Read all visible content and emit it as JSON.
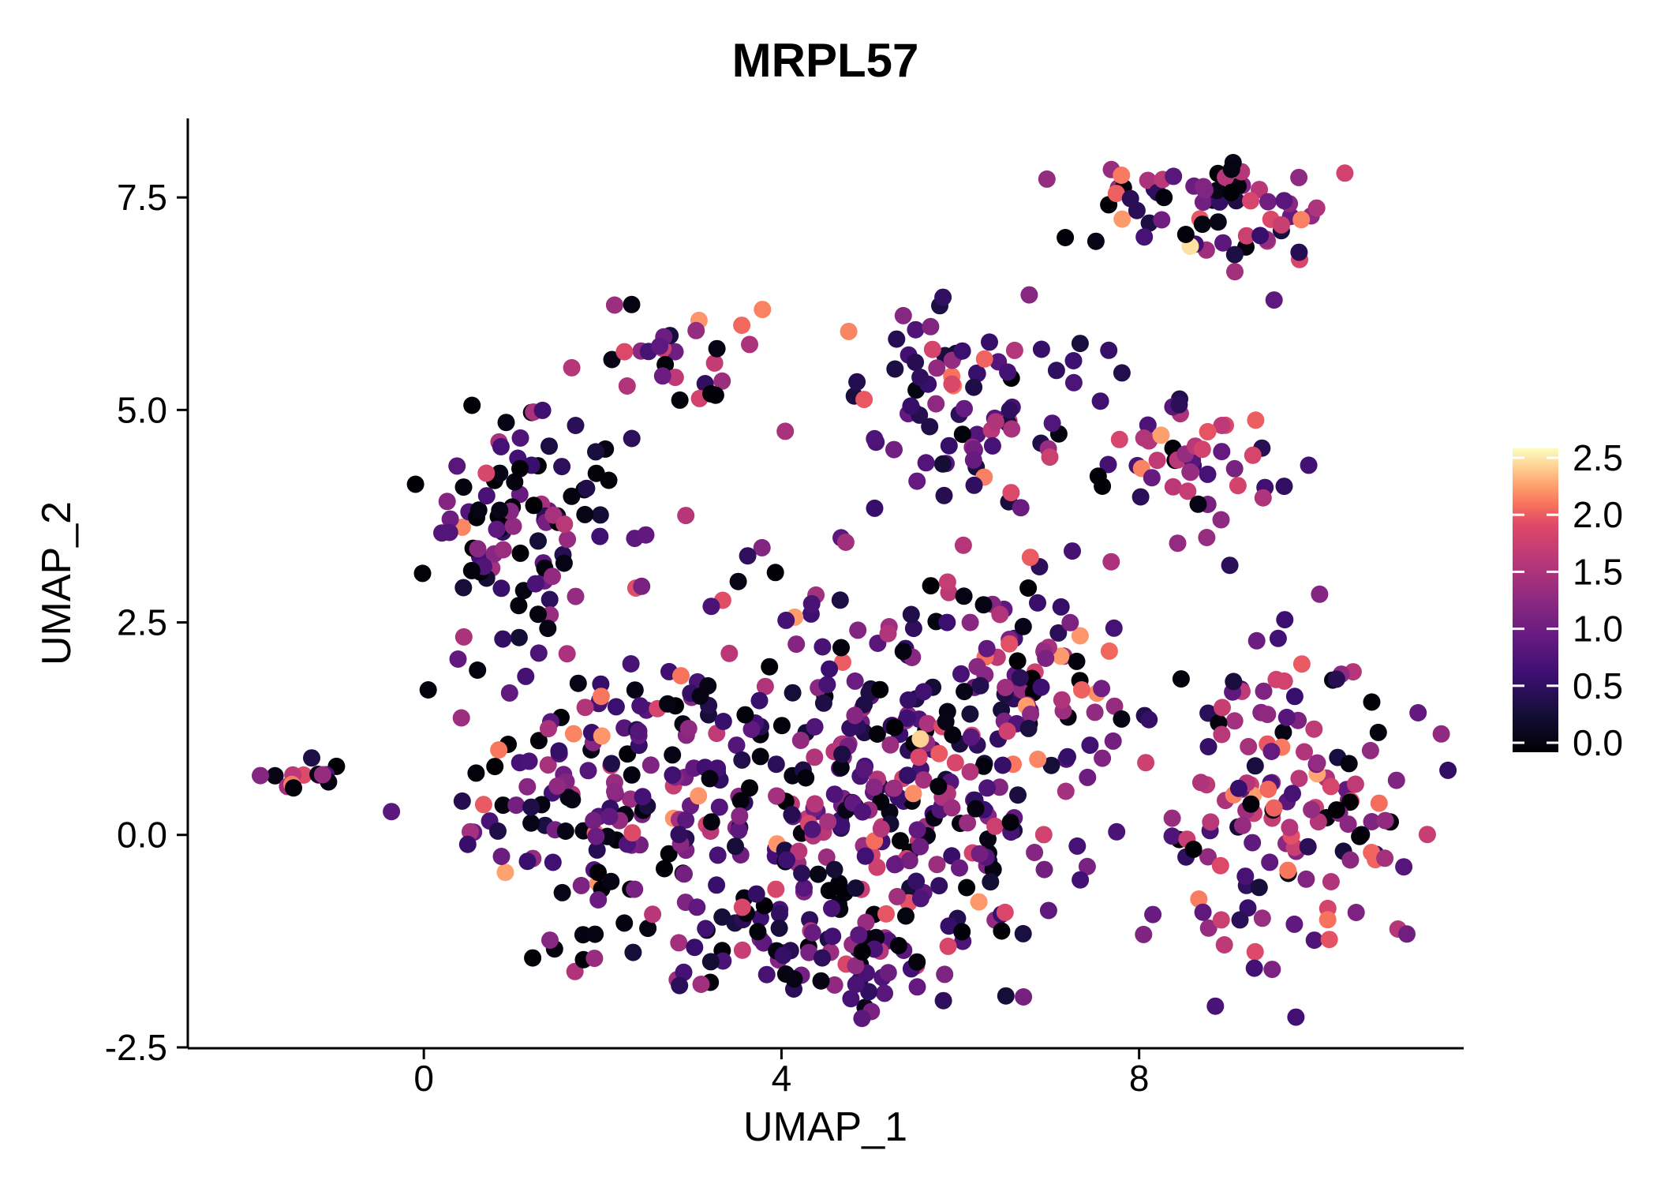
{
  "title": "MRPL57",
  "chart_data": {
    "type": "scatter",
    "title": "MRPL57",
    "xlabel": "UMAP_1",
    "ylabel": "UMAP_2",
    "xlim": [
      -2.64,
      11.63
    ],
    "ylim": [
      -2.51,
      8.43
    ],
    "grid": false,
    "x_ticks": [
      {
        "value": 0,
        "label": "0"
      },
      {
        "value": 4,
        "label": "4"
      },
      {
        "value": 8,
        "label": "8"
      }
    ],
    "y_ticks": [
      {
        "value": 7.5,
        "label": "7.5"
      },
      {
        "value": 5.0,
        "label": "5.0"
      },
      {
        "value": 2.5,
        "label": "2.5"
      },
      {
        "value": 0.0,
        "label": "0.0"
      },
      {
        "value": -2.5,
        "label": "-2.5"
      }
    ],
    "legend": {
      "position": "right",
      "min": 0.0,
      "max": 2.5,
      "ticks": [
        {
          "value": 2.5,
          "label": "2.5"
        },
        {
          "value": 2.0,
          "label": "2.0"
        },
        {
          "value": 1.5,
          "label": "1.5"
        },
        {
          "value": 1.0,
          "label": "1.0"
        },
        {
          "value": 0.5,
          "label": "0.5"
        },
        {
          "value": 0.0,
          "label": "0.0"
        }
      ]
    },
    "colormap": {
      "name": "magma",
      "stops": [
        [
          0.0,
          "#000004"
        ],
        [
          0.125,
          "#140e36"
        ],
        [
          0.25,
          "#3b0f70"
        ],
        [
          0.375,
          "#641a80"
        ],
        [
          0.5,
          "#8c2981"
        ],
        [
          0.625,
          "#b73779"
        ],
        [
          0.75,
          "#de4968"
        ],
        [
          0.8125,
          "#f7705c"
        ],
        [
          0.875,
          "#fe9f6d"
        ],
        [
          0.9375,
          "#fecf92"
        ],
        [
          1.0,
          "#fcfdbf"
        ]
      ]
    },
    "point_radius": 11,
    "seed": 7,
    "value_bands": [
      [
        0.0,
        0.12
      ],
      [
        0.3,
        0.9
      ],
      [
        0.9,
        1.6
      ],
      [
        1.6,
        2.2
      ],
      [
        2.2,
        2.5
      ]
    ],
    "clusters": [
      {
        "name": "sparse-mid",
        "cx": 4.5,
        "cy": 2.9,
        "sx": 2.0,
        "sy": 1.0,
        "n": 45,
        "mix": [
          0.22,
          0.3,
          0.3,
          0.18,
          0.0
        ]
      },
      {
        "name": "center-left",
        "cx": 2.0,
        "cy": 0.6,
        "sx": 0.75,
        "sy": 0.95,
        "n": 140,
        "mix": [
          0.25,
          0.35,
          0.3,
          0.1,
          0.0
        ]
      },
      {
        "name": "center",
        "cx": 4.3,
        "cy": 0.3,
        "sx": 1.05,
        "sy": 1.0,
        "n": 190,
        "mix": [
          0.15,
          0.4,
          0.32,
          0.12,
          0.01
        ]
      },
      {
        "name": "center-right",
        "cx": 5.9,
        "cy": 0.7,
        "sx": 0.85,
        "sy": 1.05,
        "n": 150,
        "mix": [
          0.12,
          0.42,
          0.32,
          0.13,
          0.01
        ]
      },
      {
        "name": "bottom-arc",
        "cx": 4.4,
        "cy": -1.35,
        "sx": 1.15,
        "sy": 0.4,
        "n": 75,
        "mix": [
          0.2,
          0.45,
          0.3,
          0.05,
          0.0
        ]
      },
      {
        "name": "mid-east",
        "cx": 6.9,
        "cy": 1.9,
        "sx": 0.5,
        "sy": 0.6,
        "n": 55,
        "mix": [
          0.22,
          0.28,
          0.3,
          0.18,
          0.02
        ]
      },
      {
        "name": "left",
        "cx": 1.15,
        "cy": 3.7,
        "sx": 0.5,
        "sy": 0.65,
        "n": 90,
        "mix": [
          0.3,
          0.35,
          0.3,
          0.05,
          0.0
        ]
      },
      {
        "name": "upper-mid",
        "cx": 6.1,
        "cy": 5.0,
        "sx": 0.7,
        "sy": 0.6,
        "n": 90,
        "mix": [
          0.1,
          0.58,
          0.27,
          0.05,
          0.0
        ]
      },
      {
        "name": "top-center",
        "cx": 2.9,
        "cy": 5.7,
        "sx": 0.42,
        "sy": 0.35,
        "n": 30,
        "mix": [
          0.28,
          0.22,
          0.3,
          0.2,
          0.0
        ]
      },
      {
        "name": "right-lower",
        "cx": 9.8,
        "cy": 0.5,
        "sx": 0.8,
        "sy": 0.9,
        "n": 150,
        "mix": [
          0.12,
          0.3,
          0.36,
          0.2,
          0.02
        ]
      },
      {
        "name": "right-mid",
        "cx": 8.6,
        "cy": 4.3,
        "sx": 0.5,
        "sy": 0.45,
        "n": 45,
        "mix": [
          0.08,
          0.3,
          0.45,
          0.15,
          0.02
        ]
      },
      {
        "name": "top-right",
        "cx": 8.6,
        "cy": 7.4,
        "sx": 0.7,
        "sy": 0.3,
        "n": 60,
        "mix": [
          0.2,
          0.33,
          0.3,
          0.14,
          0.03
        ]
      },
      {
        "name": "top-right-tail",
        "cx": 9.35,
        "cy": 6.9,
        "sx": 0.25,
        "sy": 0.35,
        "n": 10,
        "mix": [
          0.1,
          0.5,
          0.3,
          0.1,
          0.0
        ]
      },
      {
        "name": "far-left",
        "cx": -1.35,
        "cy": 0.68,
        "sx": 0.25,
        "sy": 0.1,
        "n": 14,
        "mix": [
          0.25,
          0.3,
          0.3,
          0.15,
          0.0
        ]
      }
    ]
  }
}
